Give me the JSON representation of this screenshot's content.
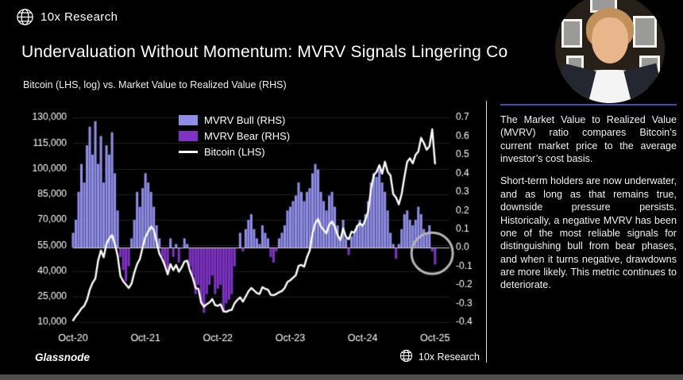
{
  "header": {
    "brand": "10x Research",
    "title": "Undervaluation Without Momentum: MVRV Signals Lingering Co",
    "subtitle": "Bitcoin (LHS, log) vs. Market Value to Realized Value (RHS)"
  },
  "footer": {
    "source": "Glassnode",
    "brand": "10x Research"
  },
  "side_panel": {
    "accent_color": "#4949b8",
    "paragraphs": [
      "The Market Value to Realized Value (MVRV) ratio compares Bitcoin’s current market price to the average investor’s cost basis.",
      "Short-term holders are now underwater, and as long as that remains true, downside pressure persists. Historically, a negative MVRV has been one of the most reliable signals for distinguishing bull from bear phases, and when it turns negative, drawdowns are more likely. This metric continues to deteriorate."
    ]
  },
  "chart_data": {
    "type": "bar+line combo",
    "x_unit": "years since Oct-2020",
    "points_per_year": 26,
    "x_domain": [
      0,
      5.2
    ],
    "grid": "faint horizontal",
    "legend_position": "top-center, vertical stack",
    "series": [
      {
        "name": "MVRV Bull (RHS)",
        "type": "bar",
        "axis": "right",
        "color": "#8f8de6",
        "condition": "values >= 0"
      },
      {
        "name": "MVRV Bear (RHS)",
        "type": "bar",
        "axis": "right",
        "color": "#7e33c4",
        "condition": "values < 0"
      },
      {
        "name": "Bitcoin (LHS)",
        "type": "line",
        "axis": "left",
        "color": "#ffffff"
      }
    ],
    "x_ticks": [
      {
        "t": 0,
        "label": "Oct-20"
      },
      {
        "t": 1,
        "label": "Oct-21"
      },
      {
        "t": 2,
        "label": "Oct-22"
      },
      {
        "t": 3,
        "label": "Oct-23"
      },
      {
        "t": 4,
        "label": "Oct-24"
      },
      {
        "t": 5,
        "label": "Oct-25"
      }
    ],
    "left_axis": {
      "min": 10000,
      "max": 130000,
      "ticks": [
        {
          "v": 130000,
          "label": "130,000"
        },
        {
          "v": 115000,
          "label": "115,000"
        },
        {
          "v": 100000,
          "label": "100,000"
        },
        {
          "v": 85000,
          "label": "85,000"
        },
        {
          "v": 70000,
          "label": "70,000"
        },
        {
          "v": 55000,
          "label": "55,000"
        },
        {
          "v": 40000,
          "label": "40,000"
        },
        {
          "v": 25000,
          "label": "25,000"
        },
        {
          "v": 10000,
          "label": "10,000"
        }
      ]
    },
    "right_axis": {
      "min": -0.4,
      "max": 0.7,
      "ticks": [
        {
          "v": 0.7,
          "label": "0.7"
        },
        {
          "v": 0.6,
          "label": "0.6"
        },
        {
          "v": 0.5,
          "label": "0.5"
        },
        {
          "v": 0.4,
          "label": "0.4"
        },
        {
          "v": 0.3,
          "label": "0.3"
        },
        {
          "v": 0.2,
          "label": "0.2"
        },
        {
          "v": 0.1,
          "label": "0.1"
        },
        {
          "v": 0.0,
          "label": "0.0"
        },
        {
          "v": -0.1,
          "label": "-0.1"
        },
        {
          "v": -0.2,
          "label": "-0.2"
        },
        {
          "v": -0.3,
          "label": "-0.3"
        },
        {
          "v": -0.4,
          "label": "-0.4"
        }
      ]
    },
    "mvrv": [
      0.08,
      0.15,
      0.3,
      0.45,
      0.35,
      0.55,
      0.65,
      0.5,
      0.68,
      0.45,
      0.6,
      0.35,
      0.55,
      0.5,
      0.62,
      0.4,
      0.2,
      -0.05,
      -0.12,
      -0.18,
      -0.1,
      0.05,
      0.15,
      0.3,
      0.22,
      0.32,
      0.4,
      0.35,
      0.3,
      0.22,
      0.12,
      0.05,
      -0.05,
      -0.1,
      -0.12,
      0.05,
      -0.05,
      0.02,
      -0.08,
      0.0,
      0.05,
      0.02,
      -0.1,
      -0.15,
      -0.25,
      -0.2,
      -0.3,
      -0.35,
      -0.25,
      -0.2,
      -0.15,
      -0.25,
      -0.22,
      -0.2,
      -0.35,
      -0.3,
      -0.28,
      -0.25,
      -0.1,
      0.0,
      0.08,
      -0.02,
      0.1,
      0.15,
      0.18,
      0.1,
      0.05,
      0.02,
      0.12,
      0.08,
      0.05,
      -0.05,
      -0.08,
      -0.02,
      0.05,
      0.08,
      0.12,
      0.2,
      0.22,
      0.25,
      0.28,
      0.35,
      0.3,
      0.25,
      0.3,
      0.32,
      0.4,
      0.45,
      0.42,
      0.3,
      0.25,
      0.2,
      0.28,
      0.3,
      0.22,
      0.12,
      0.05,
      0.15,
      0.05,
      -0.04,
      0.06,
      0.08,
      0.12,
      0.15,
      0.12,
      0.18,
      0.25,
      0.35,
      0.4,
      0.38,
      0.42,
      0.35,
      0.3,
      0.2,
      0.08,
      0.02,
      -0.06,
      0.02,
      0.1,
      0.18,
      0.2,
      0.15,
      0.12,
      0.15,
      0.22,
      0.18,
      0.1,
      0.08,
      0.12,
      -0.02,
      -0.09
    ],
    "btc": [
      11000,
      13500,
      15500,
      18000,
      19500,
      23000,
      29000,
      33000,
      35500,
      46000,
      52000,
      48000,
      56000,
      59000,
      61000,
      56000,
      49000,
      37000,
      34000,
      32000,
      30000,
      32500,
      39000,
      44000,
      47000,
      54000,
      60000,
      63000,
      66000,
      64000,
      57000,
      50000,
      47000,
      43000,
      38000,
      44000,
      40500,
      43500,
      39500,
      42000,
      45500,
      46000,
      40000,
      36000,
      30000,
      29500,
      21500,
      19000,
      20500,
      21500,
      23500,
      20000,
      19500,
      20500,
      16500,
      16000,
      16800,
      17200,
      21000,
      23000,
      24500,
      22000,
      25000,
      28000,
      30000,
      28500,
      27000,
      26500,
      30500,
      29500,
      29000,
      26000,
      25800,
      26500,
      27500,
      28200,
      30000,
      33500,
      34500,
      36000,
      37500,
      43000,
      43500,
      42500,
      48000,
      52000,
      62000,
      68000,
      70500,
      66000,
      64000,
      62000,
      67000,
      69000,
      66000,
      61000,
      58000,
      65000,
      60000,
      58500,
      63000,
      62500,
      66000,
      68000,
      66500,
      70000,
      75000,
      88000,
      96000,
      98000,
      102000,
      97000,
      104000,
      98000,
      96000,
      85000,
      83000,
      79000,
      85000,
      95000,
      104000,
      106000,
      103000,
      108000,
      110000,
      118000,
      115000,
      111000,
      113000,
      123000,
      103000
    ],
    "annotation_circle": {
      "t": 4.96,
      "value_rhs": -0.03,
      "radius_px": 26,
      "color": "#b5b5b5"
    },
    "zero_line_color": "#cfcfcf"
  }
}
